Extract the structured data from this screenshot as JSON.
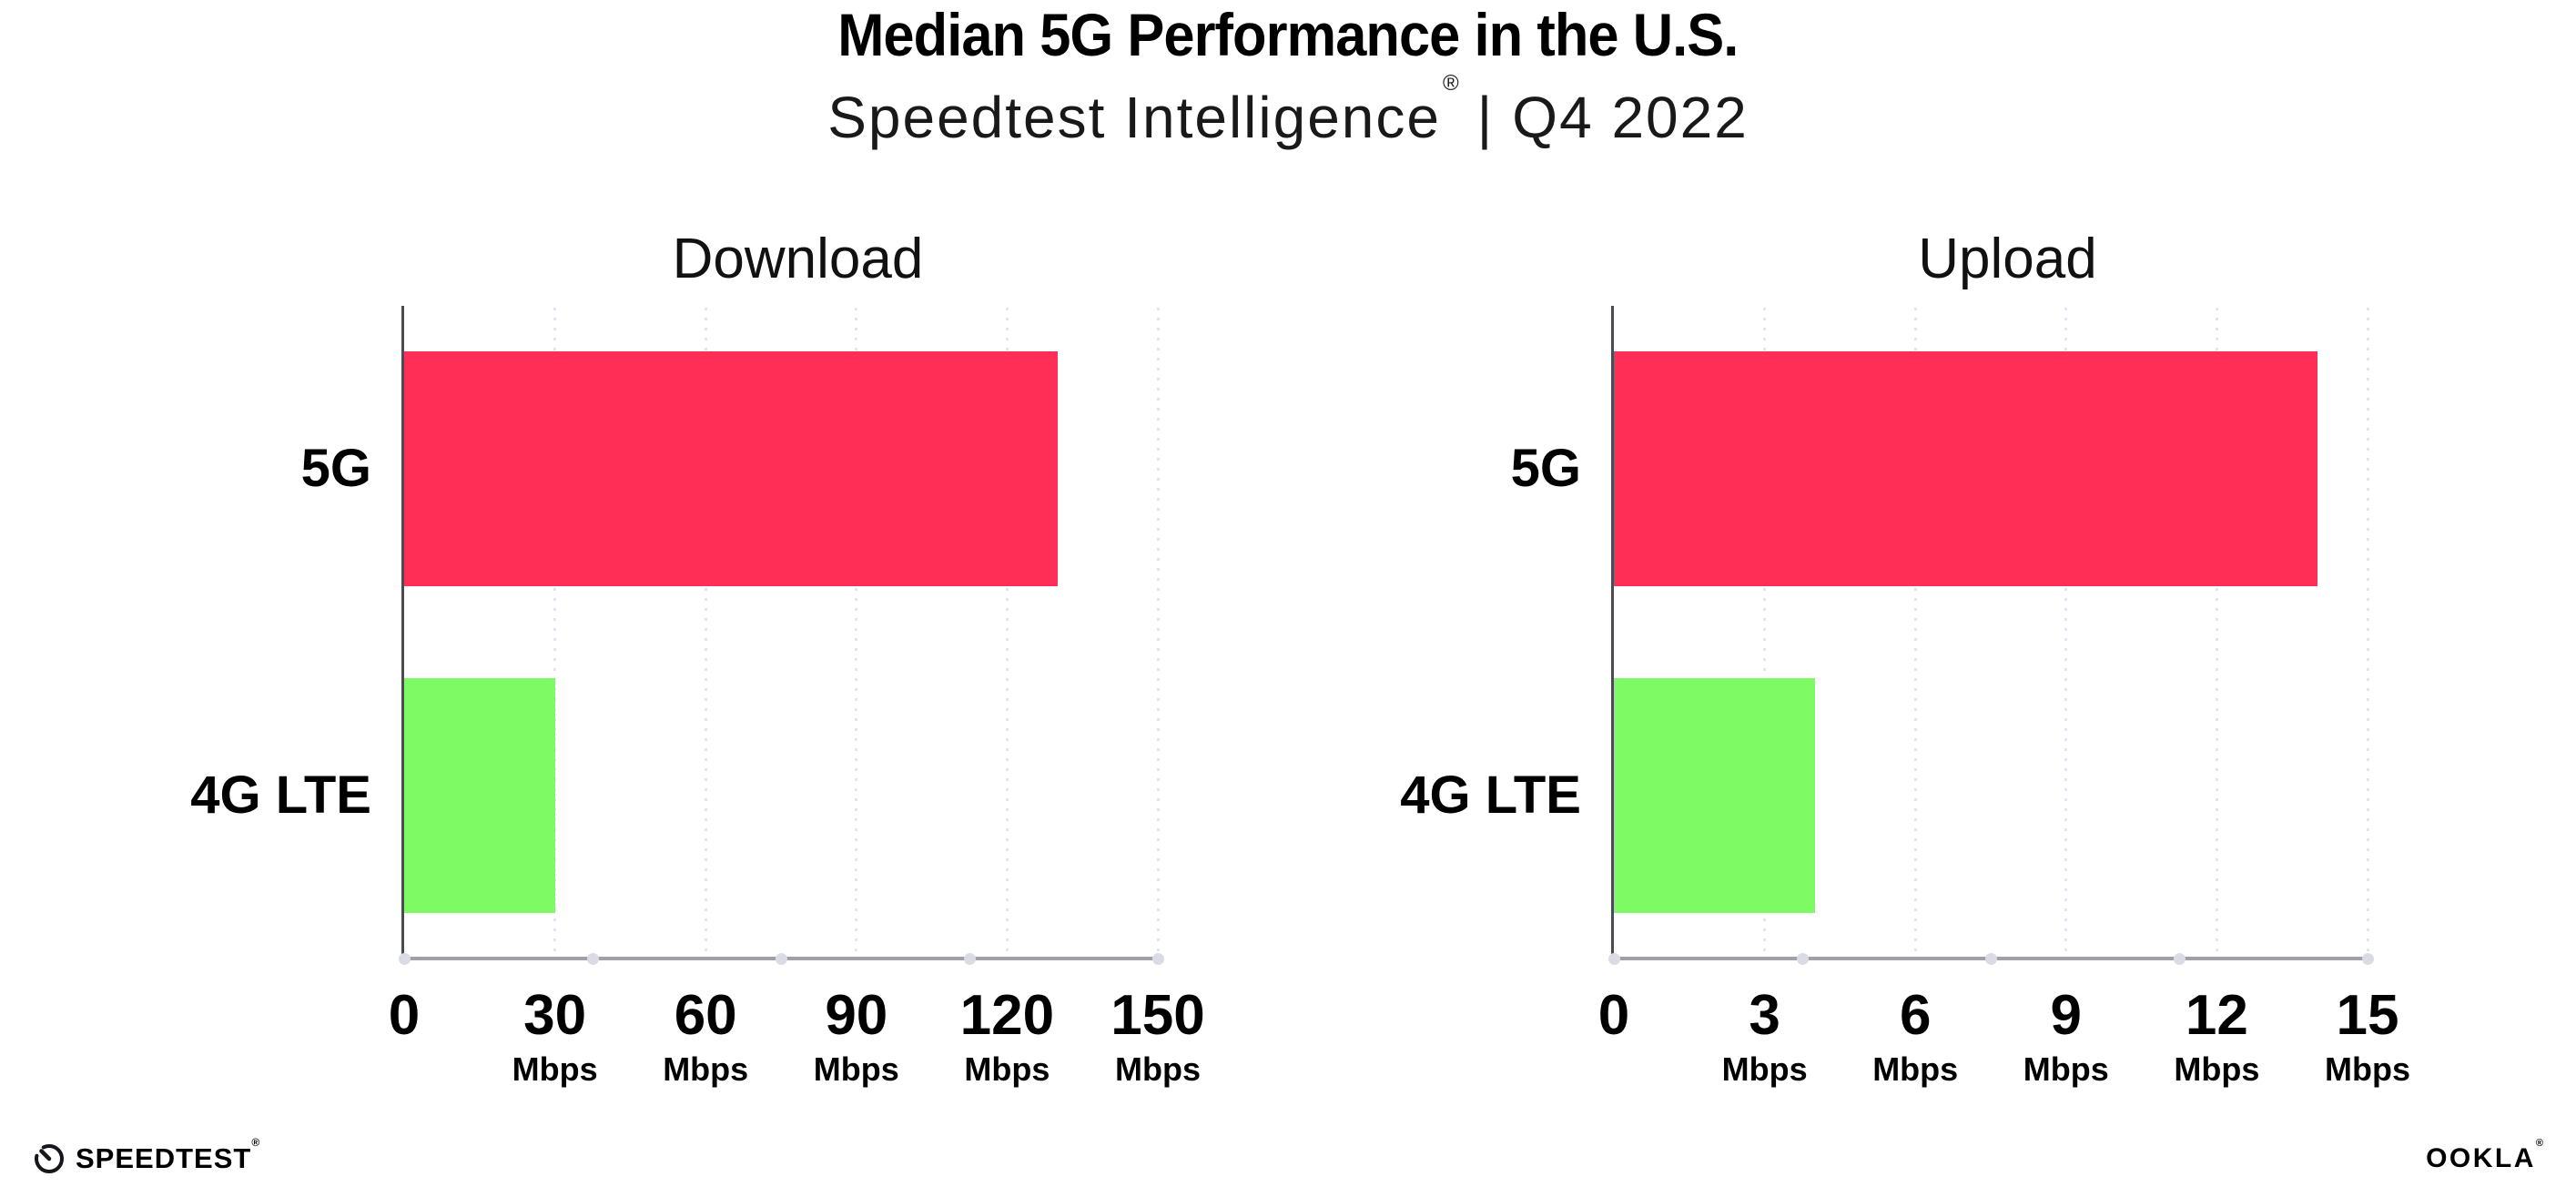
{
  "header": {
    "title": "Median 5G Performance in the U.S.",
    "subtitle_brand": "Speedtest Intelligence",
    "subtitle_reg": "®",
    "subtitle_sep": "|",
    "subtitle_period": "Q4 2022"
  },
  "chart_data": [
    {
      "type": "bar",
      "orientation": "horizontal",
      "title": "Download",
      "categories": [
        "5G",
        "4G LTE"
      ],
      "values": [
        130,
        30
      ],
      "value_unit": "Mbps",
      "xlim": [
        0,
        150
      ],
      "tick_values": [
        0,
        30,
        60,
        90,
        120,
        150
      ],
      "ticks": [
        {
          "label": "0",
          "unit": ""
        },
        {
          "label": "30",
          "unit": "Mbps"
        },
        {
          "label": "60",
          "unit": "Mbps"
        },
        {
          "label": "90",
          "unit": "Mbps"
        },
        {
          "label": "120",
          "unit": "Mbps"
        },
        {
          "label": "150",
          "unit": "Mbps"
        }
      ],
      "bar_colors": [
        "#FF2E56",
        "#7DFA64"
      ],
      "grid": "vertical-dotted",
      "legend": "none"
    },
    {
      "type": "bar",
      "orientation": "horizontal",
      "title": "Upload",
      "categories": [
        "5G",
        "4G LTE"
      ],
      "values": [
        14,
        4
      ],
      "value_unit": "Mbps",
      "xlim": [
        0,
        15
      ],
      "tick_values": [
        0,
        3,
        6,
        9,
        12,
        15
      ],
      "ticks": [
        {
          "label": "0",
          "unit": ""
        },
        {
          "label": "3",
          "unit": "Mbps"
        },
        {
          "label": "6",
          "unit": "Mbps"
        },
        {
          "label": "9",
          "unit": "Mbps"
        },
        {
          "label": "12",
          "unit": "Mbps"
        },
        {
          "label": "15",
          "unit": "Mbps"
        }
      ],
      "bar_colors": [
        "#FF2E56",
        "#7DFA64"
      ],
      "grid": "vertical-dotted",
      "legend": "none"
    }
  ],
  "footer": {
    "speedtest_logo_text": "SPEEDTEST",
    "speedtest_reg": "®",
    "ookla_logo_text": "OOKLA",
    "ookla_reg": "®"
  },
  "colors": {
    "bar_5g": "#FF2E56",
    "bar_4g_lte": "#7DFA64",
    "gridline": "#E4E4EF",
    "axis_left_spine": "#4B4B56",
    "axis_bottom_spine": "#9FA0A8",
    "axis_dot": "#DBDBE5",
    "background": "#FFFFFF",
    "text": "#000000"
  }
}
